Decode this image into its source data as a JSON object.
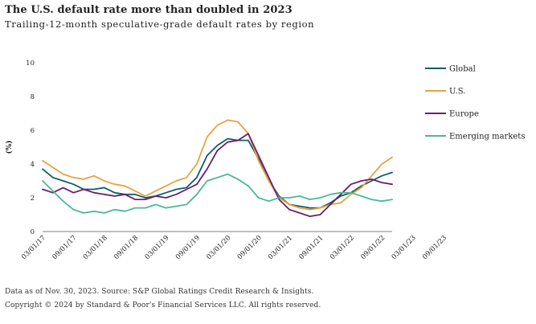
{
  "header": {
    "title": "The U.S. default rate more than doubled in 2023",
    "subtitle": "Trailing-12-month speculative-grade default rates by region"
  },
  "footer": {
    "source": "Data as of Nov. 30, 2023. Source: S&P Global Ratings Credit Research & Insights.",
    "copyright": "Copyright © 2024 by Standard & Poor's Financial Services LLC. All rights reserved."
  },
  "chart_data": {
    "type": "line",
    "title": "The U.S. default rate more than doubled in 2023",
    "subtitle": "Trailing-12-month speculative-grade default rates by region",
    "ylabel": "(%)",
    "xlabel": "",
    "ylim": [
      0,
      10
    ],
    "yticks": [
      0,
      2,
      4,
      6,
      8,
      10
    ],
    "x_start": "03/01/17",
    "x_step_months": 2,
    "x_tick_labels": [
      "03/01/17",
      "09/01/17",
      "03/01/18",
      "09/01/18",
      "03/01/19",
      "09/01/19",
      "03/01/20",
      "09/01/20",
      "03/01/21",
      "09/01/21",
      "03/01/22",
      "09/01/22",
      "03/01/23",
      "09/01/23"
    ],
    "grid": false,
    "legend_position": "right",
    "series": [
      {
        "name": "Global",
        "color": "#0f5e6b",
        "values": [
          3.7,
          3.2,
          3.0,
          2.8,
          2.5,
          2.5,
          2.6,
          2.3,
          2.2,
          2.2,
          2.0,
          2.1,
          2.3,
          2.5,
          2.6,
          3.2,
          4.5,
          5.1,
          5.5,
          5.4,
          5.4,
          4.3,
          3.0,
          2.1,
          1.6,
          1.5,
          1.4,
          1.4,
          1.7,
          2.1,
          2.3,
          2.7,
          3.0,
          3.3,
          3.5
        ]
      },
      {
        "name": "U.S.",
        "color": "#e8a33c",
        "values": [
          4.2,
          3.8,
          3.4,
          3.2,
          3.1,
          3.3,
          3.0,
          2.8,
          2.7,
          2.4,
          2.1,
          2.4,
          2.7,
          3.0,
          3.2,
          4.0,
          5.6,
          6.3,
          6.6,
          6.5,
          5.8,
          4.2,
          3.0,
          2.0,
          1.6,
          1.4,
          1.3,
          1.4,
          1.6,
          1.7,
          2.2,
          2.6,
          3.3,
          4.0,
          4.4
        ]
      },
      {
        "name": "Europe",
        "color": "#6a1e6f",
        "values": [
          2.5,
          2.3,
          2.6,
          2.3,
          2.5,
          2.3,
          2.2,
          2.1,
          2.2,
          1.9,
          1.9,
          2.1,
          2.0,
          2.2,
          2.5,
          2.8,
          3.7,
          4.8,
          5.3,
          5.4,
          5.8,
          4.5,
          3.2,
          1.9,
          1.3,
          1.1,
          0.9,
          1.0,
          1.6,
          2.2,
          2.8,
          3.0,
          3.1,
          2.9,
          2.8
        ]
      },
      {
        "name": "Emerging markets",
        "color": "#4cb79a",
        "values": [
          3.0,
          2.4,
          1.8,
          1.3,
          1.1,
          1.2,
          1.1,
          1.3,
          1.2,
          1.4,
          1.4,
          1.6,
          1.4,
          1.5,
          1.6,
          2.2,
          3.0,
          3.2,
          3.4,
          3.1,
          2.7,
          2.0,
          1.8,
          2.0,
          2.0,
          2.1,
          1.9,
          2.0,
          2.2,
          2.3,
          2.3,
          2.1,
          1.9,
          1.8,
          1.9
        ]
      }
    ]
  }
}
